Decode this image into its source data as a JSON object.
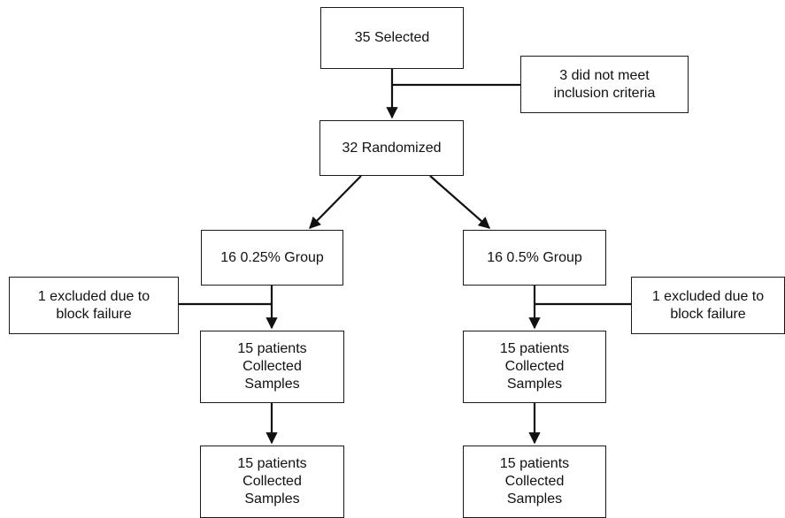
{
  "flowchart": {
    "selected": {
      "lines": [
        "35 Selected"
      ]
    },
    "inclusion_excluded": {
      "lines": [
        "3 did not meet",
        "inclusion criteria"
      ]
    },
    "randomized": {
      "lines": [
        "32 Randomized"
      ]
    },
    "group_025": {
      "lines": [
        "16 0.25% Group"
      ]
    },
    "group_05": {
      "lines": [
        "16 0.5% Group"
      ]
    },
    "excluded_left": {
      "lines": [
        "1 excluded due to",
        "block failure"
      ]
    },
    "excluded_right": {
      "lines": [
        "1 excluded due to",
        "block failure"
      ]
    },
    "collected_left_1": {
      "lines": [
        "15 patients",
        "Collected",
        "Samples"
      ]
    },
    "collected_right_1": {
      "lines": [
        "15 patients",
        "Collected",
        "Samples"
      ]
    },
    "collected_left_2": {
      "lines": [
        "15 patients",
        "Collected",
        "Samples"
      ]
    },
    "collected_right_2": {
      "lines": [
        "15 patients",
        "Collected",
        "Samples"
      ]
    }
  }
}
